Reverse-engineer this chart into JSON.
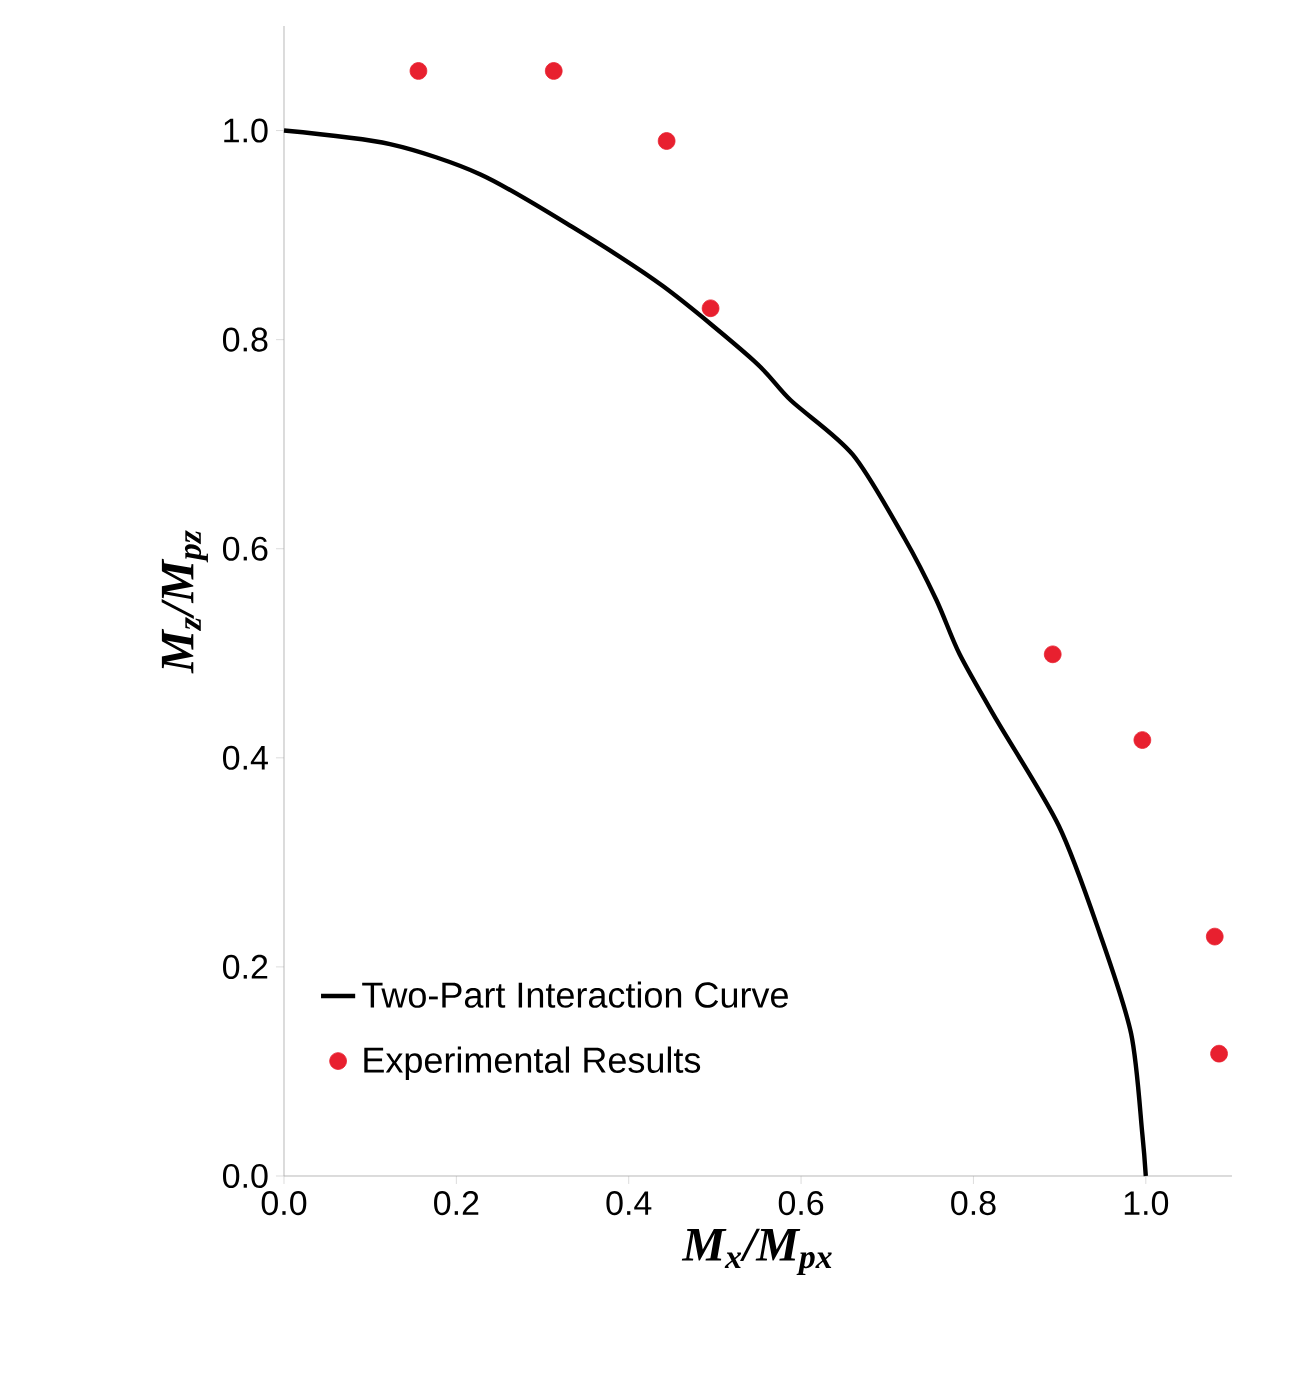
{
  "chart_data": {
    "type": "scatter",
    "xlabel": "M$_{x}$/M$_{px}$",
    "ylabel": "M$_{z}$/M$_{pz}$",
    "xlim": [
      0,
      1.1
    ],
    "ylim": [
      0,
      1.1
    ],
    "xticks": [
      {
        "value": 0,
        "label": "0.0"
      },
      {
        "value": 0.2,
        "label": "0.2"
      },
      {
        "value": 0.4,
        "label": "0.4"
      },
      {
        "value": 0.6,
        "label": "0.6"
      },
      {
        "value": 0.8,
        "label": "0.8"
      },
      {
        "value": 1,
        "label": "1.0"
      }
    ],
    "yticks": [
      {
        "value": 0,
        "label": "0.0"
      },
      {
        "value": 0.2,
        "label": "0.2"
      },
      {
        "value": 0.4,
        "label": "0.4"
      },
      {
        "value": 0.6,
        "label": "0.6"
      },
      {
        "value": 0.8,
        "label": "0.8"
      },
      {
        "value": 1,
        "label": "1.0"
      }
    ],
    "grid": false,
    "legend": "bottom left",
    "series": [
      {
        "name": "Two-Part Interaction Curve",
        "type": "line",
        "color": "#000000",
        "marker": "none",
        "line_style": "solid",
        "x": [
          0,
          0.123,
          0.228,
          0.334,
          0.44,
          0.545,
          0.588,
          0.66,
          0.72,
          0.757,
          0.784,
          0.827,
          0.899,
          0.947,
          0.983,
          0.996,
          1.0
        ],
        "values": [
          1.0,
          0.987,
          0.958,
          0.908,
          0.851,
          0.78,
          0.742,
          0.69,
          0.61,
          0.551,
          0.499,
          0.436,
          0.335,
          0.231,
          0.136,
          0.04,
          0.0
        ]
      },
      {
        "name": "Experimental Results",
        "color": "#e8202f",
        "marker": "circle",
        "x": [
          0.156,
          0.313,
          0.444,
          0.495,
          0.892,
          0.996,
          1.08,
          1.085
        ],
        "values": [
          1.057,
          1.057,
          0.99,
          0.83,
          0.499,
          0.417,
          0.229,
          0.117
        ]
      }
    ]
  }
}
